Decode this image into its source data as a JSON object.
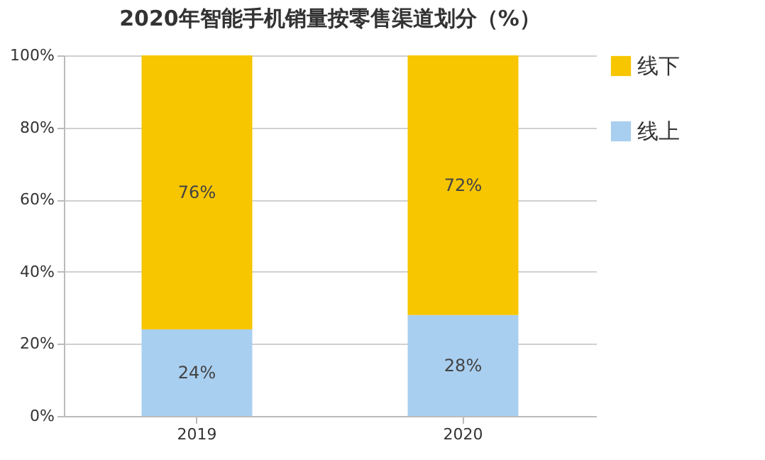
{
  "chart_data": {
    "type": "bar",
    "title": "2020年智能手机销量按零售渠道划分（%）",
    "categories": [
      "2019",
      "2020"
    ],
    "stacked": true,
    "series": [
      {
        "name": "线上",
        "color": "#a9cff0",
        "values": [
          24,
          28
        ],
        "value_labels": [
          "24%",
          "28%"
        ]
      },
      {
        "name": "线下",
        "color": "#f7c600",
        "values": [
          76,
          72
        ],
        "value_labels": [
          "76%",
          "72%"
        ]
      }
    ],
    "ylim": [
      0,
      100
    ],
    "yticks": [
      {
        "value": 0,
        "label": "0%"
      },
      {
        "value": 20,
        "label": "20%"
      },
      {
        "value": 40,
        "label": "40%"
      },
      {
        "value": 60,
        "label": "60%"
      },
      {
        "value": 80,
        "label": "80%"
      },
      {
        "value": 100,
        "label": "100%"
      }
    ],
    "grid": "y",
    "legend": "right"
  }
}
